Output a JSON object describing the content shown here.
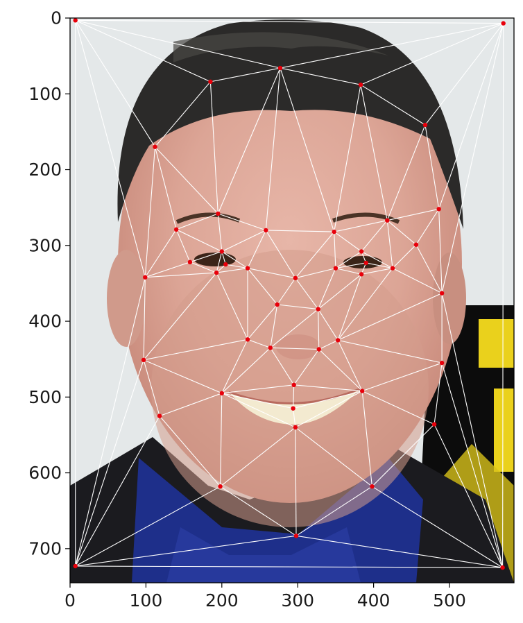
{
  "chart_data": {
    "type": "scatter",
    "title": "",
    "xlabel": "",
    "ylabel": "",
    "xlim": [
      0,
      585
    ],
    "ylim": [
      0,
      745
    ],
    "y_inverted": true,
    "grid": false,
    "background": "photograph of a smiling man's face with Delaunay triangulation overlay",
    "x_ticks": [
      0,
      100,
      200,
      300,
      400,
      500
    ],
    "y_ticks": [
      0,
      100,
      200,
      300,
      400,
      500,
      600,
      700
    ],
    "x_tick_labels": [
      "0",
      "100",
      "200",
      "300",
      "400",
      "500"
    ],
    "y_tick_labels": [
      "0",
      "100",
      "200",
      "300",
      "400",
      "500",
      "600",
      "700"
    ],
    "series": [
      {
        "name": "landmarks",
        "marker_color": "#e8000b",
        "line_color": "#ffffff",
        "points": [
          [
            7,
            3
          ],
          [
            571,
            7
          ],
          [
            7,
            723
          ],
          [
            570,
            725
          ],
          [
            185,
            84
          ],
          [
            277,
            66
          ],
          [
            383,
            88
          ],
          [
            468,
            141
          ],
          [
            112,
            170
          ],
          [
            195,
            258
          ],
          [
            140,
            279
          ],
          [
            258,
            280
          ],
          [
            348,
            282
          ],
          [
            418,
            267
          ],
          [
            486,
            252
          ],
          [
            456,
            299
          ],
          [
            200,
            308
          ],
          [
            158,
            322
          ],
          [
            205,
            325
          ],
          [
            234,
            330
          ],
          [
            193,
            336
          ],
          [
            297,
            343
          ],
          [
            350,
            330
          ],
          [
            384,
            308
          ],
          [
            390,
            323
          ],
          [
            425,
            330
          ],
          [
            384,
            338
          ],
          [
            99,
            342
          ],
          [
            273,
            378
          ],
          [
            327,
            384
          ],
          [
            490,
            363
          ],
          [
            234,
            424
          ],
          [
            264,
            435
          ],
          [
            328,
            437
          ],
          [
            353,
            425
          ],
          [
            97,
            451
          ],
          [
            490,
            455
          ],
          [
            200,
            495
          ],
          [
            295,
            484
          ],
          [
            385,
            492
          ],
          [
            294,
            515
          ],
          [
            297,
            540
          ],
          [
            118,
            525
          ],
          [
            480,
            536
          ],
          [
            198,
            618
          ],
          [
            398,
            618
          ],
          [
            298,
            683
          ]
        ]
      }
    ]
  }
}
